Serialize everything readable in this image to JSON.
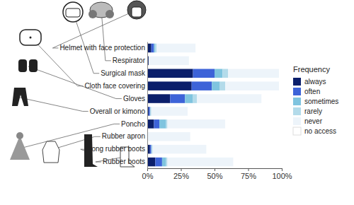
{
  "chart_data": {
    "type": "bar",
    "orientation": "horizontal",
    "stacked": true,
    "legend": "right",
    "legend_title": "Frequency",
    "categories": [
      "Helmet with face protection",
      "Respirator",
      "Surgical mask",
      "Cloth face covering",
      "Gloves",
      "Overall or kimono",
      "Poncho",
      "Rubber apron",
      "Long rubber boots",
      "Rubber boots"
    ],
    "series": [
      {
        "name": "always",
        "color": "#0b1f6b",
        "values": [
          3,
          1,
          34,
          33,
          17,
          1,
          5,
          0,
          2,
          6
        ]
      },
      {
        "name": "often",
        "color": "#3d63d8",
        "values": [
          2,
          0,
          16,
          15,
          11,
          1,
          4,
          0,
          1,
          5
        ]
      },
      {
        "name": "sometimes",
        "color": "#7fc4df",
        "values": [
          1,
          0,
          6,
          6,
          6,
          0,
          5,
          0,
          0,
          3
        ]
      },
      {
        "name": "rarely",
        "color": "#b3dbea",
        "values": [
          1,
          0,
          4,
          4,
          3,
          1,
          1,
          0,
          1,
          1
        ]
      },
      {
        "name": "never",
        "color": "#edf4fa",
        "values": [
          29,
          30,
          38,
          40,
          48,
          27,
          43,
          32,
          40,
          49
        ]
      },
      {
        "name": "no access",
        "color": "#ffffff",
        "values": [
          64,
          69,
          2,
          2,
          15,
          70,
          42,
          68,
          56,
          36
        ]
      }
    ],
    "xlim": [
      0,
      100
    ],
    "xticks": [
      {
        "value": 0,
        "label": "0%"
      },
      {
        "value": 25,
        "label": "25%"
      },
      {
        "value": 50,
        "label": "50%"
      },
      {
        "value": 75,
        "label": "75%"
      },
      {
        "value": 100,
        "label": "100%"
      }
    ]
  }
}
